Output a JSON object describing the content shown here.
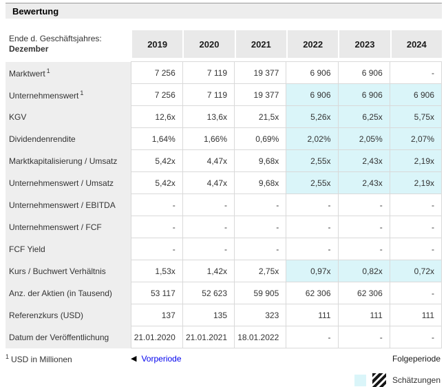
{
  "section": {
    "title": "Bewertung"
  },
  "table": {
    "header": {
      "label_line1": "Ende d. Geschäftsjahres:",
      "label_line2": "Dezember",
      "years": [
        "2019",
        "2020",
        "2021",
        "2022",
        "2023",
        "2024"
      ]
    },
    "rows": [
      {
        "label": "Marktwert",
        "sup": "1",
        "values": [
          "7 256",
          "7 119",
          "19 377",
          "6 906",
          "6 906",
          "-"
        ],
        "estimates": [
          false,
          false,
          false,
          false,
          false,
          false
        ]
      },
      {
        "label": "Unternehmenswert",
        "sup": "1",
        "values": [
          "7 256",
          "7 119",
          "19 377",
          "6 906",
          "6 906",
          "6 906"
        ],
        "estimates": [
          false,
          false,
          false,
          true,
          true,
          true
        ]
      },
      {
        "label": "KGV",
        "values": [
          "12,6x",
          "13,6x",
          "21,5x",
          "5,26x",
          "6,25x",
          "5,75x"
        ],
        "estimates": [
          false,
          false,
          false,
          true,
          true,
          true
        ]
      },
      {
        "label": "Dividendenrendite",
        "values": [
          "1,64%",
          "1,66%",
          "0,69%",
          "2,02%",
          "2,05%",
          "2,07%"
        ],
        "estimates": [
          false,
          false,
          false,
          true,
          true,
          true
        ]
      },
      {
        "label": "Marktkapitalisierung / Umsatz",
        "values": [
          "5,42x",
          "4,47x",
          "9,68x",
          "2,55x",
          "2,43x",
          "2,19x"
        ],
        "estimates": [
          false,
          false,
          false,
          true,
          true,
          true
        ]
      },
      {
        "label": "Unternehmenswert / Umsatz",
        "values": [
          "5,42x",
          "4,47x",
          "9,68x",
          "2,55x",
          "2,43x",
          "2,19x"
        ],
        "estimates": [
          false,
          false,
          false,
          true,
          true,
          true
        ]
      },
      {
        "label": "Unternehmenswert / EBITDA",
        "values": [
          "-",
          "-",
          "-",
          "-",
          "-",
          "-"
        ],
        "estimates": [
          false,
          false,
          false,
          false,
          false,
          false
        ]
      },
      {
        "label": "Unternehmenswert / FCF",
        "values": [
          "-",
          "-",
          "-",
          "-",
          "-",
          "-"
        ],
        "estimates": [
          false,
          false,
          false,
          false,
          false,
          false
        ]
      },
      {
        "label": "FCF Yield",
        "values": [
          "-",
          "-",
          "-",
          "-",
          "-",
          "-"
        ],
        "estimates": [
          false,
          false,
          false,
          false,
          false,
          false
        ]
      },
      {
        "label": "Kurs / Buchwert Verhältnis",
        "values": [
          "1,53x",
          "1,42x",
          "2,75x",
          "0,97x",
          "0,82x",
          "0,72x"
        ],
        "estimates": [
          false,
          false,
          false,
          true,
          true,
          true
        ]
      },
      {
        "label": "Anz. der Aktien (in Tausend)",
        "values": [
          "53 117",
          "52 623",
          "59 905",
          "62 306",
          "62 306",
          "-"
        ],
        "estimates": [
          false,
          false,
          false,
          false,
          false,
          false
        ]
      },
      {
        "label": "Referenzkurs (USD)",
        "values": [
          "137",
          "135",
          "323",
          "111",
          "111",
          "111"
        ],
        "estimates": [
          false,
          false,
          false,
          false,
          false,
          false
        ]
      },
      {
        "label": "Datum der Veröffentlichung",
        "values": [
          "21.01.2020",
          "21.01.2021",
          "18.01.2022",
          "-",
          "-",
          "-"
        ],
        "estimates": [
          false,
          false,
          false,
          false,
          false,
          false
        ]
      }
    ]
  },
  "footer": {
    "footnote_sup": "1",
    "footnote_text": "USD in Millionen",
    "prev_icon": "left-triangle-icon",
    "prev_label": "Vorperiode",
    "next_label": "Folgeperiode",
    "legend_label": "Schätzungen"
  },
  "colors": {
    "estimate_bg": "#daf5f9",
    "header_bg": "#e9e9e9",
    "label_bg": "#eeeeee",
    "grid_border": "#d9d9d9",
    "link_blue": "#0000ee"
  }
}
